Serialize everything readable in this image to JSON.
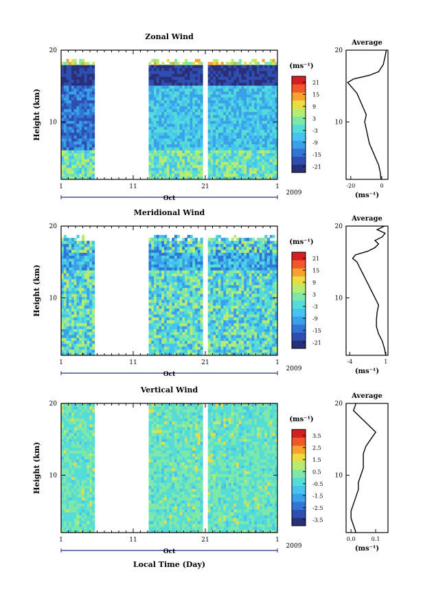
{
  "chart_data": {
    "type": "heatmap",
    "x_axis": {
      "ticks": [
        "1",
        "11",
        "21",
        "1"
      ],
      "month": "Oct",
      "year": "2009",
      "label": "Local Time (Day)"
    },
    "y_axis": {
      "label": "Height (km)",
      "ticks": [
        "10",
        "20"
      ],
      "ylim": [
        2,
        20
      ]
    },
    "data_gap_days": [
      [
        5.5,
        13.0
      ]
    ],
    "colormap": [
      "#2a2f7a",
      "#2f4fb0",
      "#2f76d6",
      "#3aa0e8",
      "#44c4ee",
      "#56dcd8",
      "#7ee8a8",
      "#b8ec70",
      "#ecdc40",
      "#f7a22e",
      "#f0582a",
      "#d42020"
    ],
    "panels": [
      {
        "title": "Zonal Wind",
        "colorbar": {
          "unit": "(ms⁻¹)",
          "ticks": [
            "21",
            "15",
            "9",
            "3",
            "-3",
            "-9",
            "-15",
            "-21"
          ],
          "range": [
            -24,
            24
          ]
        },
        "profile": {
          "title": "Average",
          "xlabel": "(ms⁻¹)",
          "xticks": [
            "-20",
            "0"
          ],
          "yticks": [
            "10",
            "20"
          ],
          "xlim": [
            -23,
            4
          ],
          "heights": [
            2,
            3,
            4,
            5,
            6,
            7,
            8,
            9,
            10,
            11,
            12,
            13,
            14,
            15,
            15.5,
            16,
            16.5,
            17,
            18,
            19,
            20
          ],
          "values": [
            -0.5,
            -1,
            -2,
            -4,
            -6,
            -8,
            -9,
            -10,
            -11,
            -10,
            -12,
            -14,
            -16,
            -20,
            -22,
            -18,
            -8,
            -2,
            1,
            2,
            3
          ]
        }
      },
      {
        "title": "Meridional Wind",
        "colorbar": {
          "unit": "(ms⁻¹)",
          "ticks": [
            "21",
            "15",
            "9",
            "3",
            "-3",
            "-9",
            "-15",
            "-21"
          ],
          "range": [
            -24,
            24
          ]
        },
        "profile": {
          "title": "Average",
          "xlabel": "(ms⁻¹)",
          "xticks": [
            "-4",
            "1"
          ],
          "yticks": [
            "10",
            "20"
          ],
          "xlim": [
            -4.5,
            1.3
          ],
          "heights": [
            2,
            3,
            4,
            5,
            6,
            7,
            8,
            9,
            10,
            11,
            12,
            13,
            14,
            15,
            15.5,
            16,
            16.5,
            17,
            17.5,
            18,
            18.5,
            19,
            19.5,
            20
          ],
          "values": [
            1,
            0.8,
            0.5,
            0,
            -0.3,
            -0.3,
            -0.2,
            0,
            -0.5,
            -1,
            -1.5,
            -2,
            -2.5,
            -3,
            -3.6,
            -3.2,
            -1.5,
            -0.5,
            0,
            -0.5,
            0.5,
            0.9,
            -0.2,
            0.8
          ]
        }
      },
      {
        "title": "Vertical Wind",
        "colorbar": {
          "unit": "(ms⁻¹)",
          "ticks": [
            "3.5",
            "2.5",
            "1.5",
            "0.5",
            "-0.5",
            "-1.5",
            "-2.5",
            "-3.5"
          ],
          "range": [
            -4,
            4
          ]
        },
        "profile": {
          "title": "Average",
          "xlabel": "(ms⁻¹)",
          "xticks": [
            "0.0",
            "0.1"
          ],
          "yticks": [
            "10",
            "20"
          ],
          "xlim": [
            -0.02,
            0.15
          ],
          "heights": [
            2,
            3,
            4,
            5,
            6,
            7,
            8,
            9,
            10,
            11,
            12,
            13,
            14,
            15,
            16,
            17,
            18,
            19,
            20
          ],
          "values": [
            0.02,
            0.01,
            0.0,
            0.0,
            0.01,
            0.02,
            0.03,
            0.03,
            0.04,
            0.05,
            0.05,
            0.05,
            0.06,
            0.08,
            0.1,
            0.07,
            0.04,
            0.01,
            0.02
          ]
        }
      }
    ]
  }
}
